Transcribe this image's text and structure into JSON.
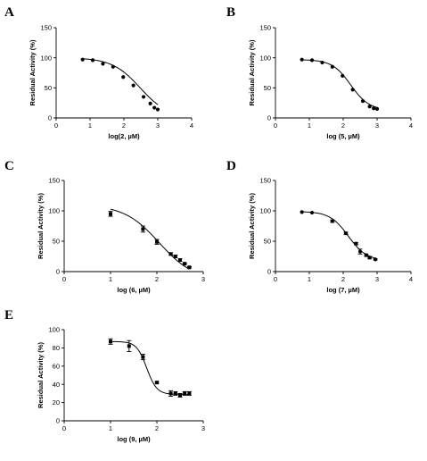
{
  "chart_data": [
    {
      "type": "scatter",
      "panel_label": "A",
      "xlabel": "log(2, µM)",
      "ylabel": "Residual Activity (%)",
      "xlim": [
        0,
        4
      ],
      "ylim": [
        0,
        150
      ],
      "xticks": [
        "0",
        "1",
        "2",
        "3",
        "4"
      ],
      "yticks": [
        "0",
        "50",
        "100",
        "150"
      ],
      "grid": false,
      "series": [
        {
          "x": [
            0.78,
            1.08,
            1.38,
            1.68,
            1.98,
            2.28,
            2.58,
            2.78,
            2.9,
            3.0
          ],
          "y": [
            97,
            96,
            90,
            85,
            68,
            54,
            35,
            24,
            17,
            14
          ],
          "err": [
            0,
            0,
            0,
            0,
            0,
            0,
            0,
            0,
            0,
            0
          ]
        }
      ],
      "fit": {
        "top": 100,
        "bottom": 0,
        "log_ic50": 2.48,
        "hill": -1.05
      }
    },
    {
      "type": "scatter",
      "panel_label": "B",
      "xlabel": "log (5, µM)",
      "ylabel": "Residual Activity (%)",
      "xlim": [
        0,
        4
      ],
      "ylim": [
        0,
        150
      ],
      "xticks": [
        "0",
        "1",
        "2",
        "3",
        "4"
      ],
      "yticks": [
        "0",
        "50",
        "100",
        "150"
      ],
      "grid": false,
      "series": [
        {
          "x": [
            0.78,
            1.08,
            1.38,
            1.68,
            1.98,
            2.28,
            2.58,
            2.78,
            2.9,
            3.0
          ],
          "y": [
            97,
            96,
            92,
            85,
            70,
            47,
            28,
            19,
            16,
            15
          ],
          "err": [
            0,
            0,
            0,
            0,
            0,
            0,
            0,
            0,
            0,
            0
          ]
        }
      ],
      "fit": {
        "top": 97,
        "bottom": 13,
        "log_ic50": 2.22,
        "hill": -1.6
      }
    },
    {
      "type": "scatter",
      "panel_label": "C",
      "xlabel": "log (6, µM)",
      "ylabel": "Residual Activity (%)",
      "xlim": [
        0,
        3
      ],
      "ylim": [
        0,
        150
      ],
      "xticks": [
        "0",
        "1",
        "2",
        "3"
      ],
      "yticks": [
        "0",
        "50",
        "100",
        "150"
      ],
      "grid": false,
      "series": [
        {
          "x": [
            1.0,
            1.7,
            2.0,
            2.3,
            2.4,
            2.5,
            2.6,
            2.7
          ],
          "y": [
            95,
            70,
            49,
            29,
            25,
            19,
            13,
            7
          ],
          "err": [
            4,
            5,
            4,
            2,
            2,
            2,
            1,
            1
          ]
        }
      ],
      "fit": {
        "top": 110,
        "bottom": -15,
        "log_ic50": 2.05,
        "hill": -1.15
      }
    },
    {
      "type": "scatter",
      "panel_label": "D",
      "xlabel": "log (7, µM)",
      "ylabel": "Residual Activity (%)",
      "xlim": [
        0,
        4
      ],
      "ylim": [
        0,
        150
      ],
      "xticks": [
        "0",
        "1",
        "2",
        "3",
        "4"
      ],
      "yticks": [
        "0",
        "50",
        "100",
        "150"
      ],
      "grid": false,
      "series": [
        {
          "x": [
            0.78,
            1.08,
            1.68,
            2.08,
            2.38,
            2.5,
            2.68,
            2.78,
            2.95
          ],
          "y": [
            98,
            97,
            83,
            63,
            46,
            33,
            27,
            23,
            20
          ],
          "err": [
            0,
            0,
            2,
            2,
            2,
            4,
            2,
            2,
            1
          ]
        }
      ],
      "fit": {
        "top": 99,
        "bottom": 18,
        "log_ic50": 2.15,
        "hill": -1.6
      }
    },
    {
      "type": "scatter",
      "panel_label": "E",
      "xlabel": "log (9, µM)",
      "ylabel": "Residual Activity (%)",
      "xlim": [
        0,
        3
      ],
      "ylim": [
        0,
        100
      ],
      "xticks": [
        "0",
        "1",
        "2",
        "3"
      ],
      "yticks": [
        "0",
        "20",
        "40",
        "60",
        "80",
        "100"
      ],
      "grid": false,
      "series": [
        {
          "x": [
            1.0,
            1.4,
            1.7,
            2.0,
            2.3,
            2.4,
            2.5,
            2.6,
            2.7
          ],
          "y": [
            87,
            82,
            70,
            42,
            30,
            30,
            28,
            30,
            30
          ],
          "err": [
            3,
            6,
            3,
            1,
            3,
            2,
            2,
            2,
            2
          ]
        }
      ],
      "fit": {
        "top": 87,
        "bottom": 29,
        "log_ic50": 1.78,
        "hill": -4.0
      }
    }
  ]
}
